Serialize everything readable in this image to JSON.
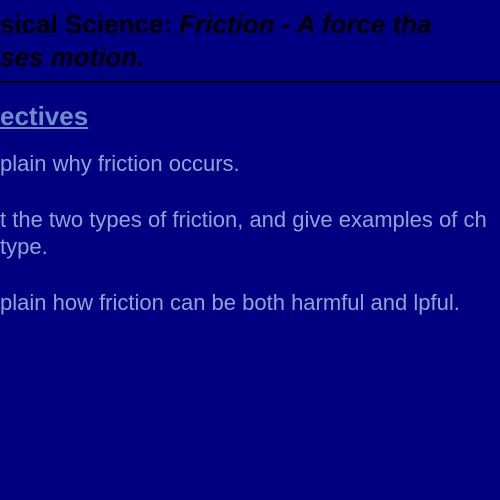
{
  "colors": {
    "background": "#000080",
    "title_text": "#000000",
    "heading_text": "#6b8fc9",
    "body_text": "#8ba6d6",
    "border": "#000000"
  },
  "typography": {
    "title_fontsize": 26,
    "heading_fontsize": 26,
    "body_fontsize": 22,
    "font_family": "Arial"
  },
  "title": {
    "prefix": "sical Science: ",
    "topic": "Friction - A force tha",
    "line2": "ses motion."
  },
  "heading": "ectives",
  "objectives": [
    "plain why friction occurs.",
    "t the two types of friction, and give examples of ch type.",
    "plain how friction can be both harmful and lpful."
  ]
}
